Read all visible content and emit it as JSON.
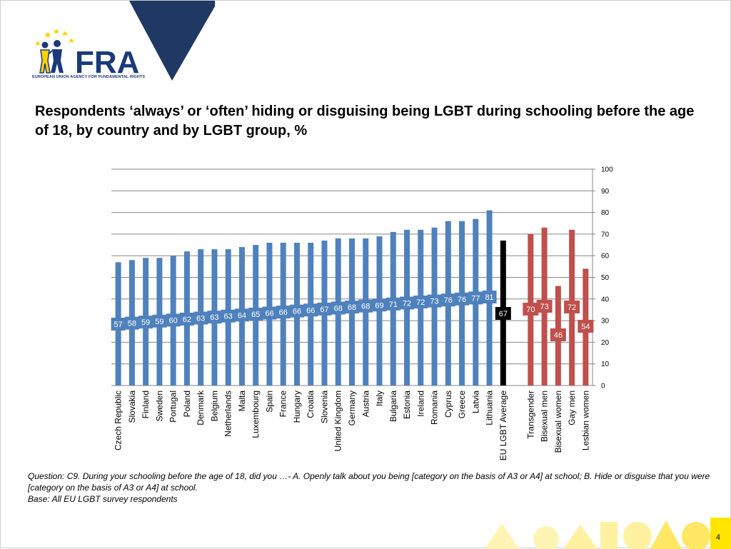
{
  "header": {
    "logo_wordmark": "FRA",
    "logo_subtitle": "EUROPEAN UNION AGENCY FOR FUNDAMENTAL RIGHTS"
  },
  "chart_data": {
    "type": "bar",
    "title": "Respondents ‘always’ or ‘often’ hiding or disguising being LGBT during schooling before the age of 18, by country and by LGBT group, %",
    "categories": [
      "Czech Republic",
      "Slovakia",
      "Finland",
      "Sweden",
      "Portugal",
      "Poland",
      "Denmark",
      "Belgium",
      "Netherlands",
      "Malta",
      "Luxembourg",
      "Spain",
      "France",
      "Hungary",
      "Croatia",
      "Slovenia",
      "United Kingdom",
      "Germany",
      "Austria",
      "Italy",
      "Bulgaria",
      "Estonia",
      "Ireland",
      "Romania",
      "Cyprus",
      "Greece",
      "Latvia",
      "Lithuania",
      "EU LGBT Average",
      "",
      "Transgender",
      "Bisexual men",
      "Bisexual women",
      "Gay men",
      "Lesbian women"
    ],
    "values": [
      57,
      58,
      59,
      59,
      60,
      62,
      63,
      63,
      63,
      64,
      65,
      66,
      66,
      66,
      66,
      67,
      68,
      68,
      68,
      69,
      71,
      72,
      72,
      73,
      76,
      76,
      77,
      81,
      67,
      null,
      70,
      73,
      46,
      72,
      54
    ],
    "groups": [
      "country",
      "country",
      "country",
      "country",
      "country",
      "country",
      "country",
      "country",
      "country",
      "country",
      "country",
      "country",
      "country",
      "country",
      "country",
      "country",
      "country",
      "country",
      "country",
      "country",
      "country",
      "country",
      "country",
      "country",
      "country",
      "country",
      "country",
      "country",
      "average",
      "gap",
      "group",
      "group",
      "group",
      "group",
      "group"
    ],
    "data_labels": [
      "57",
      "58",
      "59",
      "59",
      "60",
      "62",
      "63",
      "63",
      "63",
      "64",
      "65",
      "66",
      "66",
      "66",
      "66",
      "67",
      "68",
      "68",
      "68",
      "69",
      "71",
      "72",
      "72",
      "73",
      "76",
      "76",
      "77",
      "81",
      "67",
      "",
      "70",
      "73",
      "46",
      "72",
      "54"
    ],
    "ylim": [
      0,
      100
    ],
    "y_ticks": [
      "0",
      "10",
      "20",
      "30",
      "40",
      "50",
      "60",
      "70",
      "80",
      "90",
      "100"
    ],
    "y_axis_side": "right",
    "grid": true,
    "colors": {
      "country": "#4f81bd",
      "average": "#000000",
      "group": "#c0504d",
      "grid": "#868686"
    }
  },
  "footnote": {
    "question": "Question:  C9. During your schooling before the age of 18, did you …- A. Openly talk about you being [category on the basis of A3 or A4] at school; B. Hide or disguise that you were [category on the basis of A3 or A4] at school.",
    "base": "Base: All EU LGBT survey respondents"
  },
  "page_number": "4",
  "colors": {
    "navy": "#1f3864",
    "yellow": "#ffe500",
    "logo_blue": "#1a3a7a"
  }
}
